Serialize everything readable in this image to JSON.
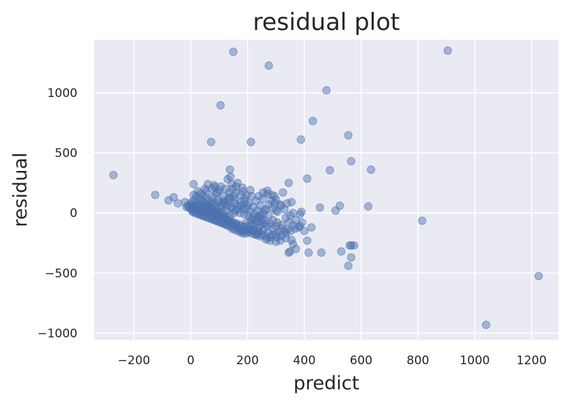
{
  "chart_data": {
    "type": "scatter",
    "title": "residual plot",
    "xlabel": "predict",
    "ylabel": "residual",
    "xlim": [
      -340,
      1295
    ],
    "ylim": [
      -1055,
      1440
    ],
    "xticks": [
      -200,
      0,
      200,
      400,
      600,
      800,
      1000,
      1200
    ],
    "yticks": [
      -1000,
      -500,
      0,
      500,
      1000
    ],
    "xtick_labels": [
      "−200",
      "0",
      "200",
      "400",
      "600",
      "800",
      "1000",
      "1200"
    ],
    "ytick_labels": [
      "−1000",
      "−500",
      "0",
      "500",
      "1000"
    ],
    "grid": true,
    "colors": {
      "background": "#eaeaf2",
      "grid": "#ffffff",
      "marker": "#4c72b0"
    },
    "marker_alpha": 0.45,
    "points": [
      [
        150,
        1340
      ],
      [
        275,
        1225
      ],
      [
        905,
        1350
      ],
      [
        478,
        1020
      ],
      [
        105,
        895
      ],
      [
        430,
        765
      ],
      [
        555,
        645
      ],
      [
        72,
        590
      ],
      [
        212,
        590
      ],
      [
        388,
        610
      ],
      [
        565,
        430
      ],
      [
        635,
        360
      ],
      [
        490,
        355
      ],
      [
        138,
        360
      ],
      [
        140,
        300
      ],
      [
        410,
        285
      ],
      [
        -272,
        315
      ],
      [
        -125,
        150
      ],
      [
        -78,
        105
      ],
      [
        -60,
        130
      ],
      [
        -45,
        80
      ],
      [
        -20,
        90
      ],
      [
        0,
        75
      ],
      [
        10,
        60
      ],
      [
        20,
        55
      ],
      [
        -5,
        40
      ],
      [
        10,
        240
      ],
      [
        60,
        240
      ],
      [
        85,
        215
      ],
      [
        100,
        190
      ],
      [
        130,
        280
      ],
      [
        145,
        240
      ],
      [
        165,
        250
      ],
      [
        185,
        180
      ],
      [
        215,
        140
      ],
      [
        255,
        120
      ],
      [
        270,
        185
      ],
      [
        295,
        140
      ],
      [
        325,
        170
      ],
      [
        345,
        250
      ],
      [
        340,
        80
      ],
      [
        355,
        90
      ],
      [
        318,
        60
      ],
      [
        290,
        40
      ],
      [
        300,
        20
      ],
      [
        305,
        10
      ],
      [
        390,
        10
      ],
      [
        455,
        45
      ],
      [
        510,
        20
      ],
      [
        525,
        60
      ],
      [
        625,
        55
      ],
      [
        360,
        0
      ],
      [
        385,
        -10
      ],
      [
        425,
        -120
      ],
      [
        400,
        -150
      ],
      [
        380,
        -120
      ],
      [
        360,
        -100
      ],
      [
        345,
        -80
      ],
      [
        330,
        -150
      ],
      [
        300,
        -180
      ],
      [
        280,
        -200
      ],
      [
        270,
        -210
      ],
      [
        265,
        -220
      ],
      [
        300,
        -240
      ],
      [
        315,
        -230
      ],
      [
        335,
        -210
      ],
      [
        355,
        -225
      ],
      [
        360,
        -260
      ],
      [
        350,
        -320
      ],
      [
        345,
        -330
      ],
      [
        370,
        -300
      ],
      [
        410,
        -230
      ],
      [
        415,
        -330
      ],
      [
        460,
        -330
      ],
      [
        530,
        -320
      ],
      [
        555,
        -440
      ],
      [
        565,
        -370
      ],
      [
        565,
        -270
      ],
      [
        560,
        -270
      ],
      [
        575,
        -270
      ],
      [
        815,
        -65
      ],
      [
        1040,
        -930
      ],
      [
        1225,
        -525
      ],
      [
        250,
        -100
      ],
      [
        240,
        -150
      ],
      [
        230,
        -180
      ],
      [
        220,
        -130
      ],
      [
        200,
        -110
      ],
      [
        195,
        -170
      ],
      [
        180,
        -150
      ],
      [
        170,
        -120
      ],
      [
        160,
        -100
      ],
      [
        150,
        -90
      ],
      [
        140,
        -80
      ],
      [
        130,
        -60
      ],
      [
        120,
        -50
      ],
      [
        110,
        -40
      ],
      [
        100,
        -30
      ],
      [
        90,
        -20
      ],
      [
        80,
        -10
      ],
      [
        70,
        0
      ],
      [
        60,
        5
      ],
      [
        50,
        10
      ],
      [
        40,
        20
      ],
      [
        30,
        25
      ],
      [
        20,
        30
      ],
      [
        10,
        35
      ],
      [
        5,
        20
      ],
      [
        15,
        10
      ],
      [
        25,
        0
      ],
      [
        35,
        -10
      ],
      [
        45,
        -20
      ],
      [
        55,
        -30
      ],
      [
        65,
        -40
      ],
      [
        75,
        -50
      ],
      [
        85,
        -60
      ],
      [
        95,
        -70
      ],
      [
        105,
        -80
      ],
      [
        115,
        -90
      ],
      [
        125,
        -100
      ],
      [
        135,
        -110
      ],
      [
        145,
        -130
      ],
      [
        155,
        -140
      ],
      [
        165,
        -150
      ],
      [
        175,
        -160
      ],
      [
        185,
        -170
      ],
      [
        205,
        -150
      ],
      [
        215,
        -90
      ],
      [
        225,
        -60
      ],
      [
        235,
        -40
      ],
      [
        245,
        -20
      ],
      [
        255,
        0
      ],
      [
        265,
        30
      ],
      [
        275,
        70
      ],
      [
        285,
        100
      ],
      [
        295,
        80
      ],
      [
        200,
        60
      ],
      [
        190,
        100
      ],
      [
        175,
        150
      ],
      [
        160,
        170
      ],
      [
        150,
        140
      ],
      [
        140,
        120
      ],
      [
        130,
        100
      ],
      [
        120,
        80
      ],
      [
        110,
        60
      ],
      [
        100,
        40
      ],
      [
        90,
        30
      ],
      [
        80,
        20
      ],
      [
        70,
        40
      ],
      [
        60,
        60
      ],
      [
        50,
        80
      ],
      [
        40,
        100
      ],
      [
        30,
        120
      ],
      [
        20,
        140
      ],
      [
        10,
        150
      ],
      [
        35,
        160
      ],
      [
        55,
        180
      ],
      [
        75,
        200
      ],
      [
        95,
        170
      ],
      [
        115,
        140
      ],
      [
        135,
        130
      ],
      [
        155,
        110
      ],
      [
        175,
        90
      ],
      [
        195,
        40
      ],
      [
        210,
        10
      ],
      [
        225,
        -10
      ],
      [
        240,
        -30
      ],
      [
        260,
        -60
      ],
      [
        280,
        -90
      ],
      [
        300,
        -110
      ],
      [
        320,
        -130
      ],
      [
        340,
        -140
      ],
      [
        310,
        -160
      ],
      [
        290,
        -130
      ],
      [
        270,
        -110
      ],
      [
        250,
        -50
      ],
      [
        235,
        20
      ],
      [
        220,
        50
      ],
      [
        205,
        80
      ],
      [
        190,
        120
      ],
      [
        178,
        60
      ],
      [
        165,
        30
      ],
      [
        152,
        0
      ],
      [
        140,
        -20
      ],
      [
        128,
        -30
      ],
      [
        116,
        -20
      ],
      [
        104,
        -10
      ],
      [
        92,
        0
      ],
      [
        82,
        10
      ],
      [
        72,
        15
      ],
      [
        62,
        20
      ],
      [
        52,
        30
      ],
      [
        42,
        40
      ],
      [
        32,
        45
      ],
      [
        22,
        50
      ],
      [
        12,
        45
      ],
      [
        3,
        30
      ],
      [
        18,
        70
      ],
      [
        28,
        80
      ],
      [
        38,
        70
      ],
      [
        48,
        60
      ],
      [
        58,
        50
      ],
      [
        68,
        30
      ],
      [
        78,
        -5
      ],
      [
        88,
        -15
      ],
      [
        98,
        -25
      ],
      [
        108,
        -35
      ],
      [
        118,
        -45
      ],
      [
        128,
        -55
      ],
      [
        138,
        -65
      ],
      [
        148,
        -75
      ],
      [
        158,
        -85
      ],
      [
        168,
        -95
      ],
      [
        178,
        -105
      ],
      [
        188,
        -115
      ],
      [
        198,
        -125
      ],
      [
        208,
        -135
      ],
      [
        218,
        -145
      ],
      [
        228,
        -155
      ],
      [
        238,
        -165
      ],
      [
        248,
        -175
      ],
      [
        258,
        -185
      ],
      [
        185,
        30
      ],
      [
        170,
        60
      ],
      [
        155,
        80
      ],
      [
        142,
        50
      ],
      [
        125,
        20
      ],
      [
        112,
        10
      ],
      [
        98,
        5
      ],
      [
        86,
        50
      ],
      [
        74,
        90
      ],
      [
        64,
        110
      ],
      [
        54,
        130
      ],
      [
        44,
        140
      ],
      [
        76,
        130
      ],
      [
        96,
        110
      ],
      [
        118,
        100
      ],
      [
        136,
        170
      ],
      [
        148,
        200
      ],
      [
        122,
        200
      ],
      [
        106,
        220
      ],
      [
        88,
        160
      ],
      [
        230,
        100
      ],
      [
        245,
        60
      ],
      [
        260,
        20
      ],
      [
        275,
        -20
      ],
      [
        290,
        -60
      ],
      [
        305,
        -80
      ],
      [
        320,
        -100
      ],
      [
        335,
        -40
      ],
      [
        350,
        -20
      ],
      [
        370,
        -60
      ],
      [
        392,
        -80
      ],
      [
        330,
        30
      ],
      [
        315,
        70
      ],
      [
        300,
        110
      ],
      [
        285,
        150
      ],
      [
        270,
        160
      ],
      [
        255,
        170
      ],
      [
        240,
        140
      ],
      [
        210,
        190
      ],
      [
        197,
        150
      ],
      [
        182,
        210
      ],
      [
        160,
        220
      ],
      [
        82,
        230
      ],
      [
        50,
        200
      ],
      [
        26,
        180
      ],
      [
        14,
        110
      ],
      [
        4,
        90
      ],
      [
        -10,
        60
      ],
      [
        -15,
        50
      ],
      [
        8,
        5
      ],
      [
        18,
        -5
      ],
      [
        30,
        -15
      ],
      [
        42,
        -25
      ],
      [
        54,
        -35
      ],
      [
        66,
        -45
      ],
      [
        78,
        -55
      ],
      [
        90,
        -65
      ],
      [
        102,
        -75
      ],
      [
        114,
        -85
      ],
      [
        126,
        -95
      ],
      [
        138,
        -105
      ],
      [
        150,
        -115
      ],
      [
        162,
        -125
      ],
      [
        174,
        -135
      ],
      [
        186,
        -145
      ],
      [
        198,
        -155
      ],
      [
        210,
        -165
      ],
      [
        222,
        -175
      ],
      [
        234,
        -185
      ],
      [
        246,
        -195
      ],
      [
        195,
        -80
      ],
      [
        210,
        -60
      ],
      [
        225,
        -100
      ],
      [
        240,
        -120
      ],
      [
        256,
        -140
      ],
      [
        272,
        -160
      ],
      [
        288,
        -180
      ],
      [
        304,
        -200
      ],
      [
        320,
        -190
      ],
      [
        336,
        -170
      ],
      [
        352,
        -150
      ],
      [
        368,
        -130
      ],
      [
        384,
        -110
      ],
      [
        280,
        -230
      ],
      [
        262,
        -90
      ],
      [
        248,
        -70
      ],
      [
        233,
        -75
      ],
      [
        218,
        -40
      ],
      [
        203,
        -20
      ],
      [
        188,
        -10
      ],
      [
        173,
        0
      ],
      [
        158,
        20
      ],
      [
        143,
        40
      ],
      [
        128,
        60
      ],
      [
        113,
        80
      ],
      [
        98,
        90
      ],
      [
        83,
        80
      ],
      [
        68,
        70
      ],
      [
        53,
        50
      ],
      [
        38,
        30
      ],
      [
        23,
        15
      ],
      [
        13,
        25
      ],
      [
        6,
        50
      ],
      [
        -2,
        55
      ]
    ]
  }
}
